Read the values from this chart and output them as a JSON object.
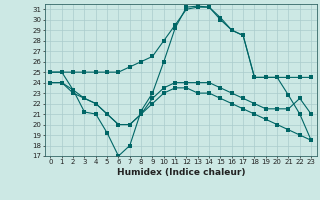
{
  "title": "",
  "xlabel": "Humidex (Indice chaleur)",
  "background_color": "#cce8e4",
  "grid_color": "#aacccc",
  "line_color": "#006666",
  "x_values": [
    0,
    1,
    2,
    3,
    4,
    5,
    6,
    7,
    8,
    9,
    10,
    11,
    12,
    13,
    14,
    15,
    16,
    17,
    18,
    19,
    20,
    21,
    22,
    23
  ],
  "series1": [
    25,
    25,
    25,
    25,
    25,
    25,
    25,
    25.5,
    26,
    26.5,
    28,
    29.5,
    31,
    31.2,
    31.2,
    30,
    29,
    28.5,
    24.5,
    24.5,
    24.5,
    24.5,
    24.5,
    24.5
  ],
  "series2": [
    25,
    25,
    23.3,
    21.2,
    21,
    19.2,
    17,
    18,
    21.3,
    23,
    26,
    29.2,
    31.2,
    31.3,
    31.2,
    30.2,
    29,
    28.5,
    24.5,
    24.5,
    24.5,
    22.8,
    21,
    18.5
  ],
  "series3": [
    24,
    24,
    23.3,
    22.5,
    22,
    21,
    20,
    20,
    21,
    22.5,
    23.5,
    24,
    24,
    24,
    24,
    23.5,
    23,
    22.5,
    22,
    21.5,
    21.5,
    21.5,
    22.5,
    21
  ],
  "series4": [
    24,
    24,
    23,
    22.5,
    22,
    21,
    20,
    20,
    21,
    22,
    23,
    23.5,
    23.5,
    23,
    23,
    22.5,
    22,
    21.5,
    21,
    20.5,
    20,
    19.5,
    19,
    18.5
  ],
  "ylim": [
    17,
    31.5
  ],
  "yticks": [
    17,
    18,
    19,
    20,
    21,
    22,
    23,
    24,
    25,
    26,
    27,
    28,
    29,
    30,
    31
  ],
  "xticks": [
    0,
    1,
    2,
    3,
    4,
    5,
    6,
    7,
    8,
    9,
    10,
    11,
    12,
    13,
    14,
    15,
    16,
    17,
    18,
    19,
    20,
    21,
    22,
    23
  ]
}
